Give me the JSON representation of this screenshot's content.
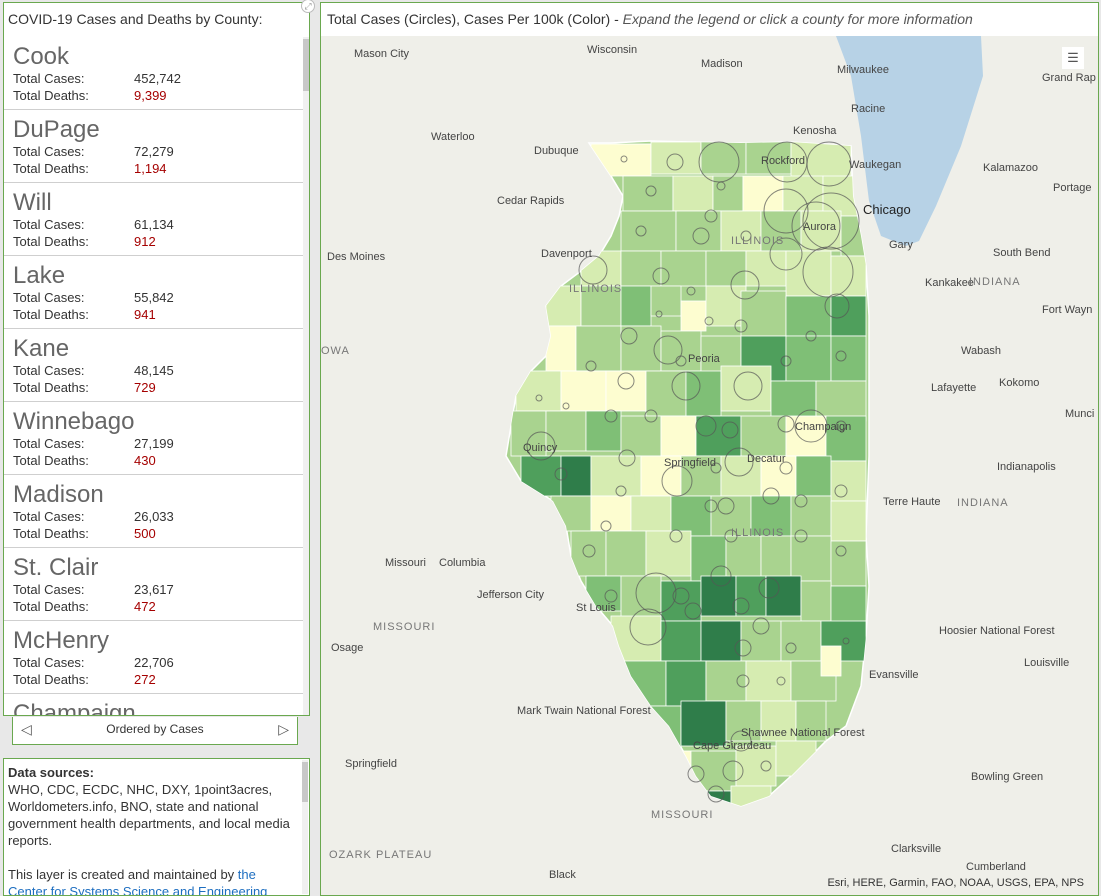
{
  "list": {
    "title": "COVID-19 Cases and Deaths by County:",
    "cases_label": "Total Cases:",
    "deaths_label": "Total Deaths:",
    "counties": [
      {
        "name": "Cook",
        "cases": "452,742",
        "deaths": "9,399"
      },
      {
        "name": "DuPage",
        "cases": "72,279",
        "deaths": "1,194"
      },
      {
        "name": "Will",
        "cases": "61,134",
        "deaths": "912"
      },
      {
        "name": "Lake",
        "cases": "55,842",
        "deaths": "941"
      },
      {
        "name": "Kane",
        "cases": "48,145",
        "deaths": "729"
      },
      {
        "name": "Winnebago",
        "cases": "27,199",
        "deaths": "430"
      },
      {
        "name": "Madison",
        "cases": "26,033",
        "deaths": "500"
      },
      {
        "name": "St. Clair",
        "cases": "23,617",
        "deaths": "472"
      },
      {
        "name": "McHenry",
        "cases": "22,706",
        "deaths": "272"
      },
      {
        "name": "Champaign",
        "cases": "",
        "deaths": ""
      }
    ],
    "pager_label": "Ordered by Cases"
  },
  "sources": {
    "heading": "Data sources:",
    "body": "WHO, CDC, ECDC, NHC, DXY, 1point3acres, Worldometers.info, BNO, state and national government health departments, and local media reports.",
    "maintained_prefix": "This layer is created and maintained by ",
    "maintained_link": "the Center for Systems Science and Engineering"
  },
  "map": {
    "title_plain": "Total Cases (Circles), Cases Per 100k (Color) - ",
    "title_italic": "Expand the legend or click a county for more information",
    "attribution": "Esri, HERE, Garmin, FAO, NOAA, USGS, EPA, NPS",
    "place_labels": [
      "Mason City",
      "Madison",
      "Wisconsin",
      "Milwaukee",
      "Grand Rap",
      "Racine",
      "Waterloo",
      "Dubuque",
      "Kenosha",
      "Rockford",
      "Waukegan",
      "Kalamazoo",
      "Portage",
      "Cedar Rapids",
      "Chicago",
      "ILLINOIS",
      "Aurora",
      "Davenport",
      "Gary",
      "South Bend",
      "Des Moines",
      "Kankakee",
      "INDIANA",
      "Fort Wayn",
      "OWA",
      "Peoria",
      "Wabash",
      "Lafayette",
      "Kokomo",
      "Munci",
      "Quincy",
      "Champaign",
      "Springfield",
      "Decatur",
      "Indianapolis",
      "Terre Haute",
      "Missouri",
      "Columbia",
      "Jefferson City",
      "St Louis",
      "MISSOURI",
      "Osage",
      "Hoosier National Forest",
      "Louisville",
      "Evansville",
      "Mark Twain National Forest",
      "Springfield",
      "Cape Girardeau",
      "Bowling Green",
      "MISSOURI",
      "OZARK PLATEAU",
      "Black",
      "Clarksville",
      "Cumberland",
      "ILLINOIS",
      "ILLINOIS",
      "INDIANA",
      "Shawnee National Forest"
    ],
    "colors": {
      "water": "#b7d2e6",
      "land": "#efefe9",
      "lightest": "#fdfdd0",
      "light": "#d6ecb1",
      "mid": "#a9d38f",
      "dark": "#7fbf76",
      "darker": "#4f9f5c",
      "darkest": "#2f7d4a"
    }
  }
}
